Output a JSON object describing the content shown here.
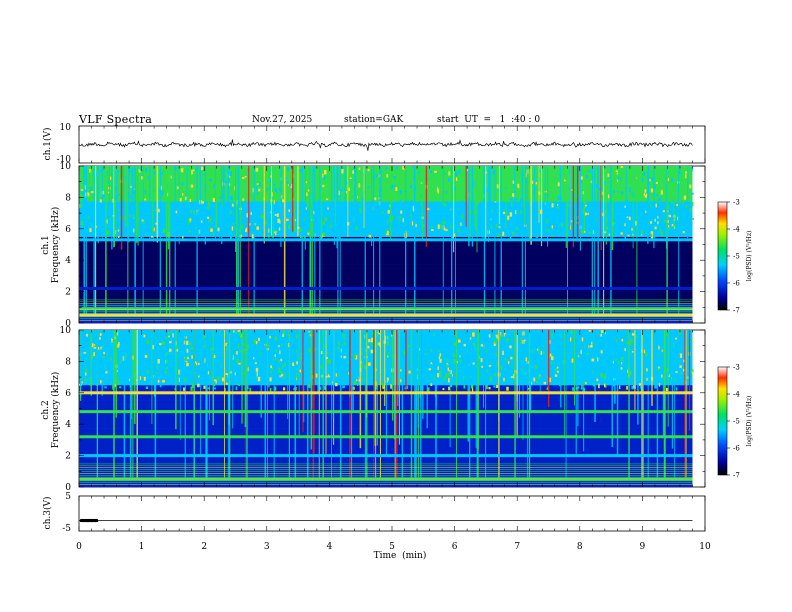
{
  "header": {
    "title": "VLF  Spectra",
    "date": "Nov.27, 2025",
    "station": "station=GAK",
    "start_ut": "start  UT  =   1  :40 : 0"
  },
  "chart_data": [
    {
      "type": "line",
      "panel": "ch1-waveform",
      "ylabel": "ch.1(V)",
      "ylim": [
        -10,
        10
      ],
      "y_ticks": [
        "10",
        "-10"
      ],
      "xlim": [
        0,
        10
      ],
      "series_level": 0,
      "x_data_end": 9.8
    },
    {
      "type": "heatmap",
      "panel": "ch1-spectrogram",
      "ylabel_line1": "ch.1",
      "ylabel_line2": "Frequency  (kHz)",
      "ylim": [
        0,
        10
      ],
      "y_ticks": [
        "0",
        "2",
        "4",
        "6",
        "8",
        "10"
      ],
      "xlim": [
        0,
        10
      ],
      "x_data_end": 9.8,
      "colorbar": {
        "label": "log(PSD) (V²/Hz)",
        "range": [
          -7,
          -3
        ],
        "ticks": [
          "-3",
          "-4",
          "-5",
          "-6",
          "-7"
        ]
      },
      "bands_khz": [
        {
          "f": 5.3,
          "level": "cyan"
        },
        {
          "f": 0.9,
          "level": "green"
        },
        {
          "f": 0.5,
          "level": "yellow"
        },
        {
          "f": 2.2,
          "level": "blue"
        }
      ]
    },
    {
      "type": "heatmap",
      "panel": "ch2-spectrogram",
      "ylabel_line1": "ch.2",
      "ylabel_line2": "Frequency  (kHz)",
      "ylim": [
        0,
        10
      ],
      "y_ticks": [
        "0",
        "2",
        "4",
        "6",
        "8",
        "10"
      ],
      "xlim": [
        0,
        10
      ],
      "x_data_end": 9.8,
      "colorbar": {
        "label": "log(PSD) (V²/Hz)",
        "range": [
          -7,
          -3
        ],
        "ticks": [
          "-3",
          "-4",
          "-5",
          "-6",
          "-7"
        ]
      },
      "bands_khz": [
        {
          "f": 6.0,
          "level": "yellow"
        },
        {
          "f": 4.8,
          "level": "green"
        },
        {
          "f": 3.2,
          "level": "green"
        },
        {
          "f": 2.0,
          "level": "cyan"
        },
        {
          "f": 0.5,
          "level": "green"
        }
      ]
    },
    {
      "type": "line",
      "panel": "ch3-waveform",
      "ylabel": "ch.3(V)",
      "ylim": [
        -5,
        5
      ],
      "y_ticks": [
        "5",
        "-5"
      ],
      "xlim": [
        0,
        10
      ],
      "xlabel": "Time  (min)",
      "x_ticks": [
        "0",
        "1",
        "2",
        "3",
        "4",
        "5",
        "6",
        "7",
        "8",
        "9",
        "10"
      ],
      "series_level": -2,
      "x_data_end": 9.8
    }
  ],
  "colors": {
    "frame": "#000000",
    "spec_dark": "#000060",
    "spec_blue": "#0020c8",
    "spec_cyan": "#00c8ff",
    "spec_green": "#30e050",
    "spec_yellow": "#f0e040",
    "spec_red": "#e02020"
  }
}
